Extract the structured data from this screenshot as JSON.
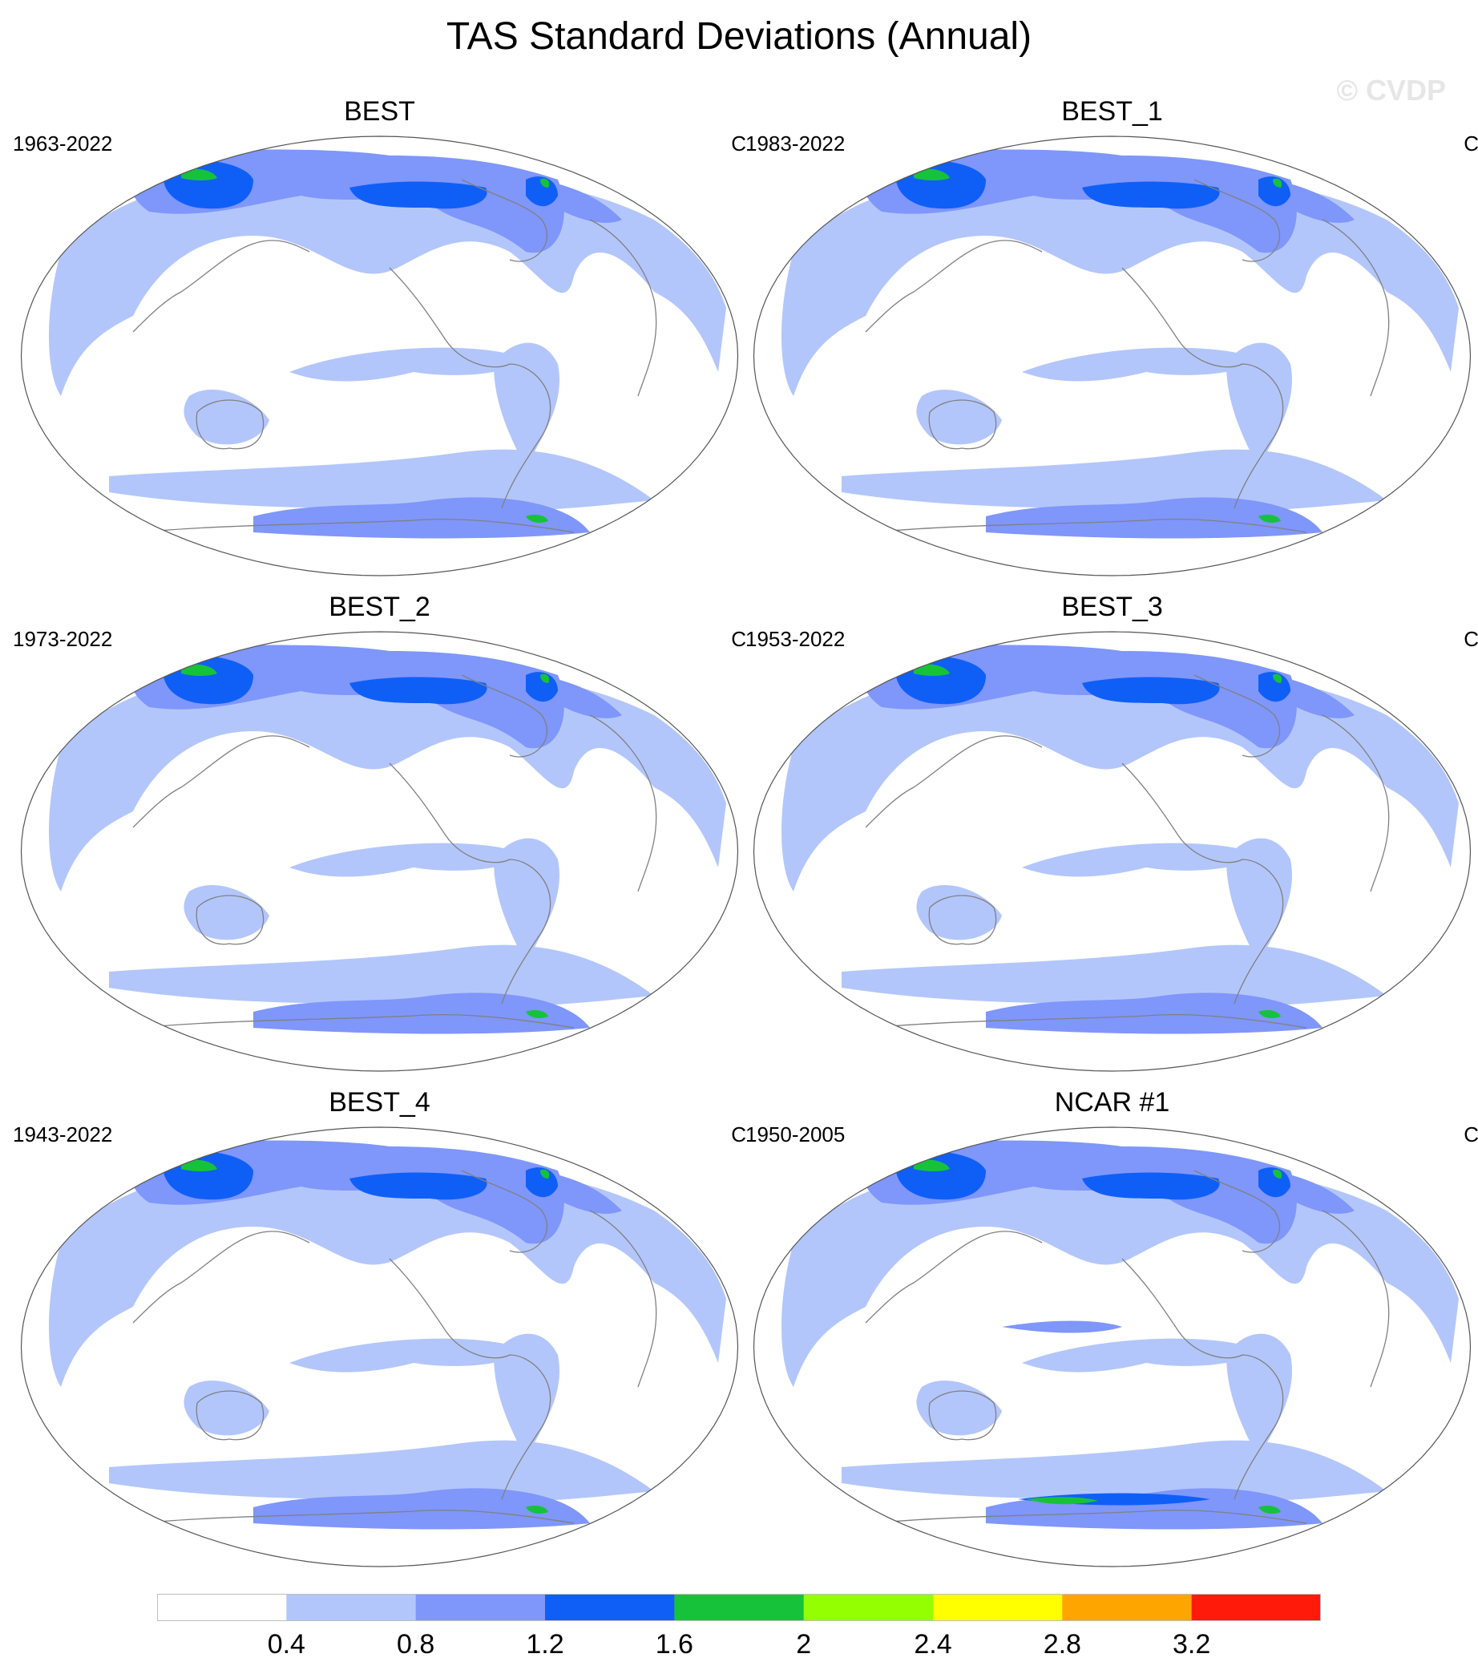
{
  "figure": {
    "title": "TAS Standard Deviations (Annual)",
    "watermark": "© CVDP"
  },
  "panels": [
    {
      "name": "BEST",
      "period": "1963-2022",
      "units": "C"
    },
    {
      "name": "BEST_1",
      "period": "1983-2022",
      "units": "C"
    },
    {
      "name": "BEST_2",
      "period": "1973-2022",
      "units": "C"
    },
    {
      "name": "BEST_3",
      "period": "1953-2022",
      "units": "C"
    },
    {
      "name": "BEST_4",
      "period": "1943-2022",
      "units": "C"
    },
    {
      "name": "NCAR #1",
      "period": "1950-2005",
      "units": "C"
    }
  ],
  "colorbar": {
    "ticks": [
      "0.4",
      "0.8",
      "1.2",
      "1.6",
      "2",
      "2.4",
      "2.8",
      "3.2"
    ],
    "colors": [
      "#ffffff",
      "#b3c6fb",
      "#7f96fb",
      "#0f5ff7",
      "#17c23b",
      "#93ff00",
      "#ffff00",
      "#ffa500",
      "#ff1a0a"
    ]
  },
  "legend_colors": {
    "ocean_background": "#ffffff",
    "low": "#b3c6fb",
    "mid": "#7f96fb",
    "high": "#0f5ff7",
    "peak": "#17c23b",
    "coast": "#808080"
  }
}
